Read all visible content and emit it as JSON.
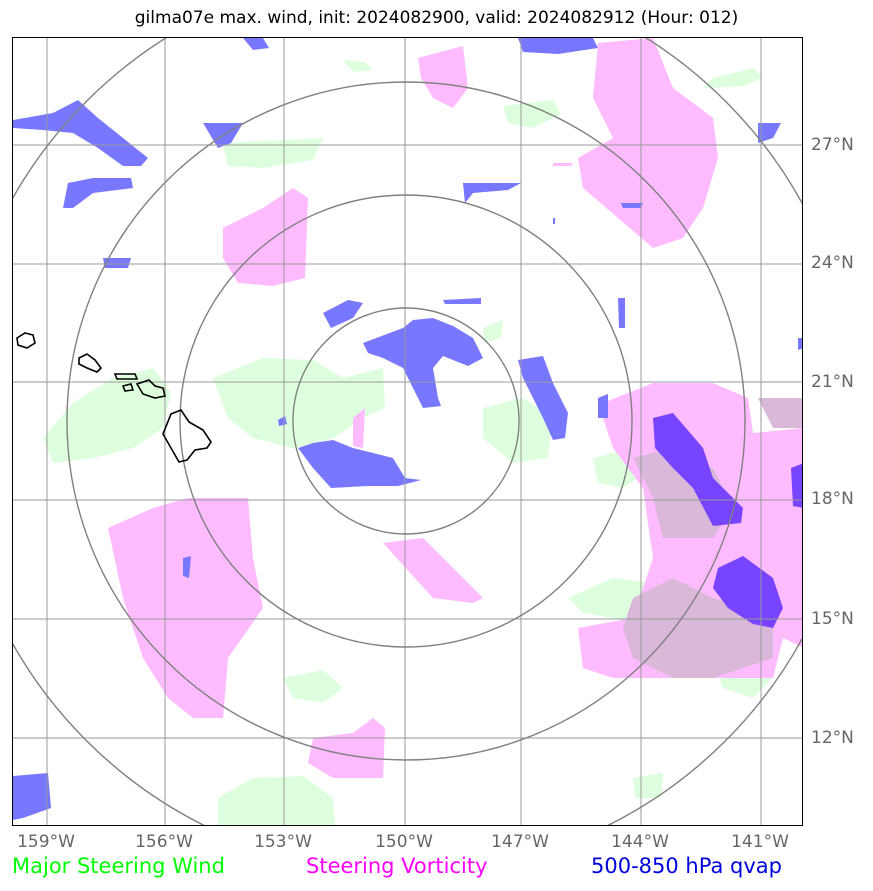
{
  "title": "gilma07e max. wind, init: 2024082900, valid: 2024082912 (Hour: 012)",
  "axes": {
    "lon_labels": [
      "159°W",
      "156°W",
      "153°W",
      "150°W",
      "147°W",
      "144°W",
      "141°W"
    ],
    "lat_labels": [
      "27°N",
      "24°N",
      "21°N",
      "18°N",
      "15°N",
      "12°N"
    ]
  },
  "legend": {
    "steering_wind": {
      "label": "Major Steering Wind",
      "color": "#00ff00"
    },
    "vorticity": {
      "label": "Steering Vorticity",
      "color": "#ff00ff"
    },
    "qvap": {
      "label": "500-850 hPa qvap",
      "color": "#0000dd"
    }
  },
  "colors": {
    "wind_fill": "#ddffdd",
    "vorticity_fill": "#ffbbff",
    "qvap_fill": "#7777ff",
    "qvap_dark_fill": "#7744ff",
    "grid": "#999999",
    "range_rings": "#808080",
    "coastline": "#000000"
  },
  "map": {
    "center": "150°W, ~19.7°N",
    "range_rings": 4,
    "landmass": "Hawaiian Islands"
  }
}
